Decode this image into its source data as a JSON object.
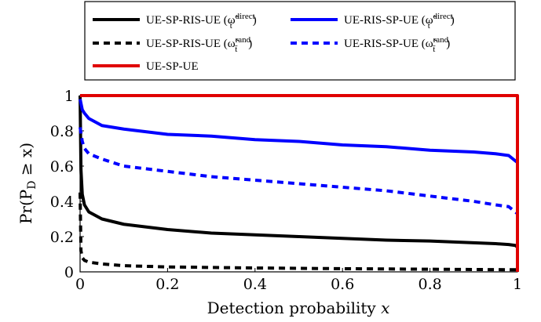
{
  "chart_data": {
    "type": "line",
    "xlabel": "Detection probability",
    "xlabel_var": "x",
    "ylabel": "Pr(P",
    "ylabel_sub": "D",
    "ylabel_rest": " ≥ x)",
    "xlim": [
      0,
      1
    ],
    "ylim": [
      0,
      1
    ],
    "xticks": [
      "0",
      "0.2",
      "0.4",
      "0.6",
      "0.8",
      "1"
    ],
    "yticks": [
      "0",
      "0.2",
      "0.4",
      "0.6",
      "0.8",
      "1"
    ],
    "grid": false,
    "legend_placement": "top, above plot",
    "series": [
      {
        "name": "UE-SP-RIS-UE",
        "legend_symbol": "ω̃",
        "legend_sup": "direct",
        "legend_sub": "t̃",
        "color": "#000000",
        "dash": "solid",
        "x": [
          0,
          0.002,
          0.005,
          0.01,
          0.02,
          0.05,
          0.1,
          0.2,
          0.3,
          0.4,
          0.5,
          0.6,
          0.7,
          0.8,
          0.9,
          0.95,
          0.98,
          0.995,
          1.0
        ],
        "y": [
          1.0,
          0.58,
          0.44,
          0.38,
          0.34,
          0.3,
          0.27,
          0.24,
          0.22,
          0.21,
          0.2,
          0.19,
          0.18,
          0.175,
          0.165,
          0.16,
          0.155,
          0.15,
          0.14
        ]
      },
      {
        "name": "UE-SP-RIS-UE",
        "legend_symbol": "ω̃",
        "legend_sup": "rand",
        "legend_sub": "t̃",
        "color": "#000000",
        "dash": "dashed",
        "x": [
          0,
          0.002,
          0.005,
          0.01,
          0.02,
          0.05,
          0.1,
          0.2,
          0.4,
          0.6,
          0.8,
          1.0
        ],
        "y": [
          0.45,
          0.12,
          0.08,
          0.065,
          0.055,
          0.045,
          0.035,
          0.028,
          0.022,
          0.018,
          0.015,
          0.012
        ]
      },
      {
        "name": "UE-SP-UE",
        "color": "#e00000",
        "dash": "solid",
        "x": [
          0,
          1,
          1
        ],
        "y": [
          1,
          1,
          0
        ]
      },
      {
        "name": "UE-RIS-SP-UE",
        "legend_symbol": "ω̃",
        "legend_sup": "direct",
        "legend_sub": "t̃",
        "color": "#0000ff",
        "dash": "solid",
        "x": [
          0,
          0.005,
          0.01,
          0.02,
          0.05,
          0.1,
          0.2,
          0.3,
          0.4,
          0.5,
          0.6,
          0.7,
          0.8,
          0.9,
          0.95,
          0.98,
          1.0
        ],
        "y": [
          0.98,
          0.92,
          0.9,
          0.87,
          0.83,
          0.81,
          0.78,
          0.77,
          0.75,
          0.74,
          0.72,
          0.71,
          0.69,
          0.68,
          0.67,
          0.66,
          0.62
        ]
      },
      {
        "name": "UE-RIS-SP-UE",
        "legend_symbol": "ω̃",
        "legend_sup": "rand",
        "legend_sub": "t̃",
        "color": "#0000ff",
        "dash": "dashed",
        "x": [
          0,
          0.005,
          0.01,
          0.02,
          0.05,
          0.1,
          0.2,
          0.3,
          0.4,
          0.5,
          0.6,
          0.7,
          0.8,
          0.9,
          0.95,
          0.98,
          1.0
        ],
        "y": [
          0.82,
          0.74,
          0.7,
          0.67,
          0.64,
          0.6,
          0.57,
          0.54,
          0.52,
          0.5,
          0.48,
          0.46,
          0.43,
          0.4,
          0.38,
          0.37,
          0.33
        ]
      }
    ]
  }
}
